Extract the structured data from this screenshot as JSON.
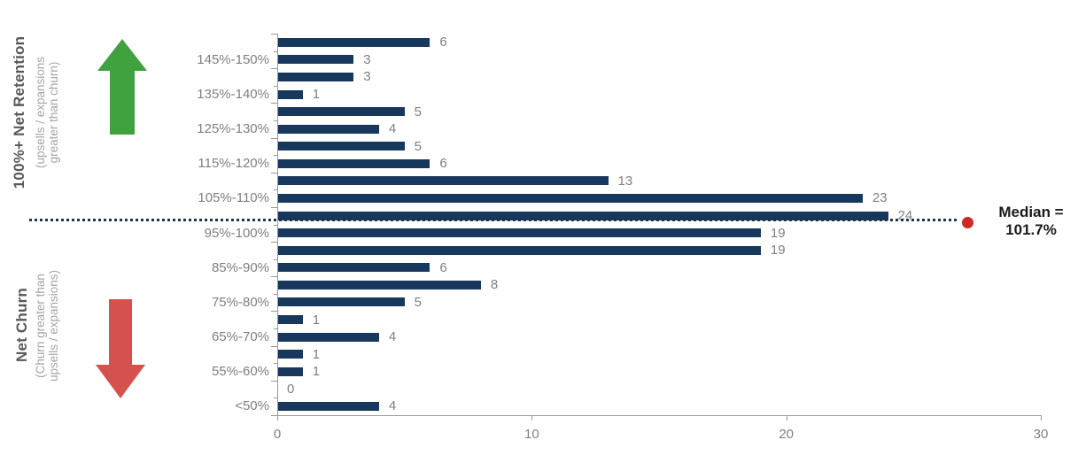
{
  "chart_data": {
    "type": "bar",
    "orientation": "horizontal",
    "categories": [
      "",
      "145%-150%",
      "",
      "135%-140%",
      "",
      "125%-130%",
      "",
      "115%-120%",
      "",
      "105%-110%",
      "",
      "95%-100%",
      "",
      "85%-90%",
      "",
      "75%-80%",
      "",
      "65%-70%",
      "",
      "55%-60%",
      "",
      "<50%"
    ],
    "values": [
      6,
      3,
      3,
      1,
      5,
      4,
      5,
      6,
      13,
      23,
      24,
      19,
      19,
      6,
      8,
      5,
      1,
      4,
      1,
      1,
      0,
      4
    ],
    "xlim": [
      0,
      30
    ],
    "x_ticks": [
      0,
      10,
      20,
      30
    ],
    "grid": false,
    "legend": false,
    "median_line": {
      "label_line1": "Median =",
      "label_line2": "101.7%",
      "style": "dotted",
      "marker": "red-dot",
      "position": "between 100%-105% and 95%-100% bars"
    }
  },
  "side_annotations": {
    "retention": {
      "title": "100%+ Net Retention",
      "subtitle_line1": "(upsells / expansions",
      "subtitle_line2": "greater than churn)",
      "arrow": "green-up-arrow"
    },
    "churn": {
      "title": "Net Churn",
      "subtitle_line1": "(Churn greater than",
      "subtitle_line2": "upsells / expansions)",
      "arrow": "red-down-arrow"
    }
  },
  "colors": {
    "bar": "#17375d",
    "value_label": "#808080",
    "category_label": "#808080",
    "axis": "#999999",
    "green_arrow": "#3fa23f",
    "red_arrow": "#d5514e",
    "red_dot": "#d02823",
    "median_text": "#1a1a1a",
    "dotted_line": "#223349",
    "side_title": "#595959",
    "side_subtitle": "#a6a6a6"
  }
}
